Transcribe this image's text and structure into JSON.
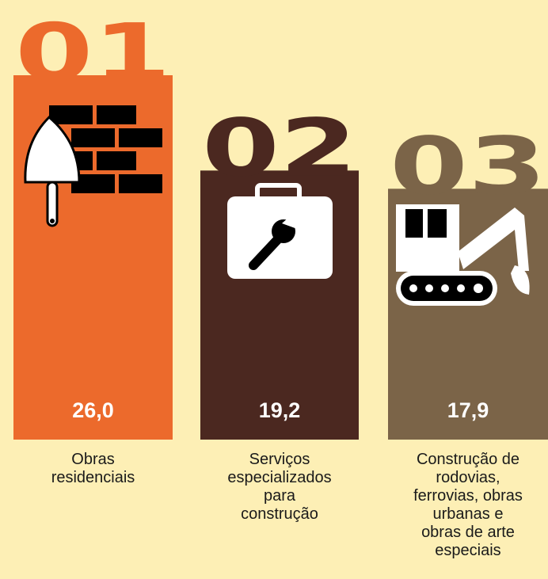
{
  "chart_data": {
    "type": "bar",
    "ranks": [
      "01",
      "02",
      "03"
    ],
    "categories": [
      [
        "Obras",
        "residenciais"
      ],
      [
        "Serviços",
        "especializados",
        "para",
        "construção"
      ],
      [
        "Construção de",
        "rodovias,",
        "ferrovias, obras",
        "urbanas e",
        "obras de arte",
        "especiais"
      ]
    ],
    "values": [
      26.0,
      19.2,
      17.9
    ],
    "value_labels": [
      "26,0",
      "19,2",
      "17,9"
    ],
    "colors": [
      "#ec6a2c",
      "#4b2820",
      "#7b6448"
    ]
  }
}
